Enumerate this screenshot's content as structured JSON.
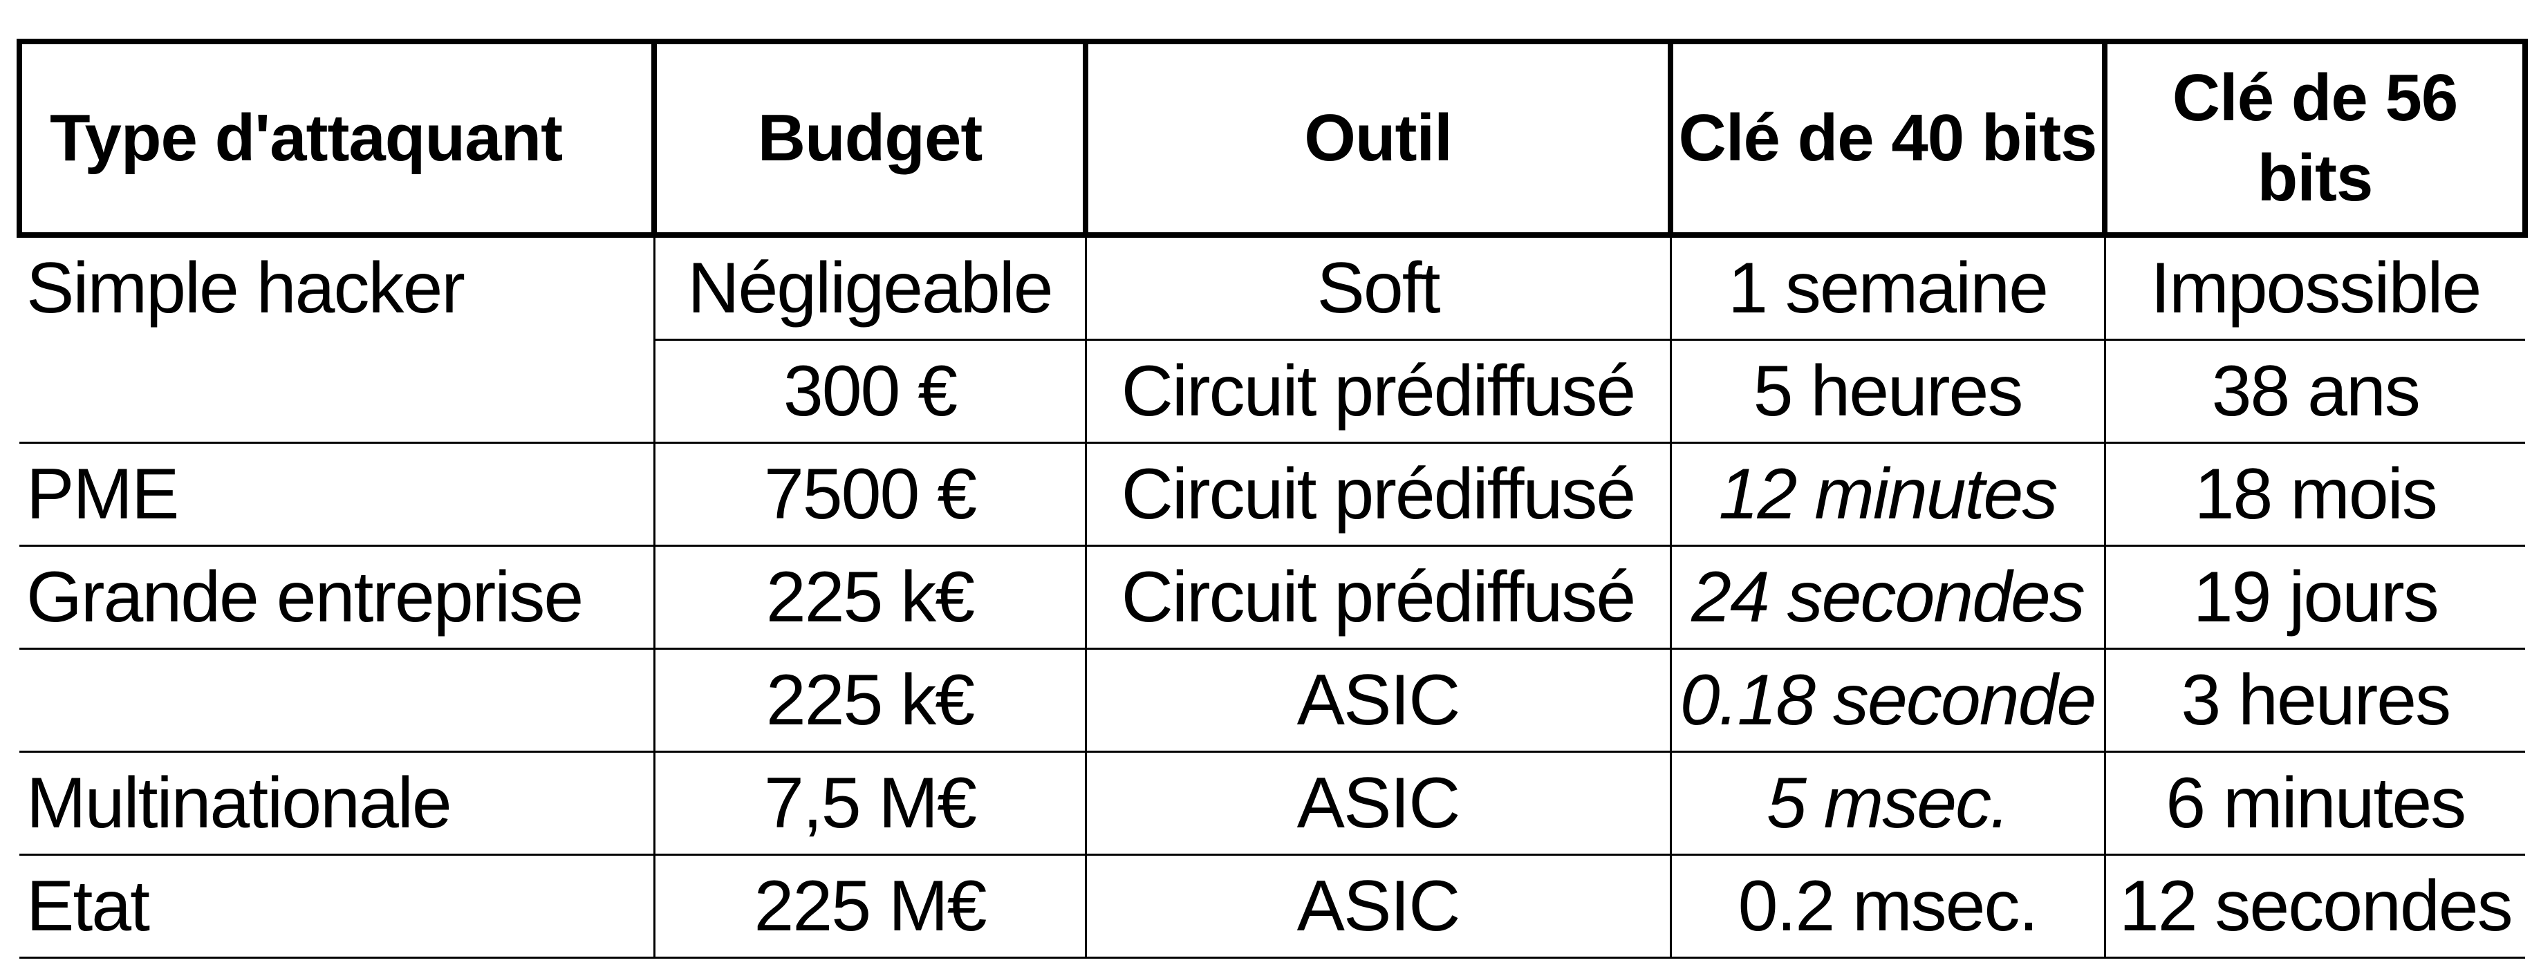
{
  "table": {
    "headers": [
      "Type d'attaquant",
      "Budget",
      "Outil",
      "Clé de 40 bits",
      "Clé de 56 bits"
    ],
    "rows": [
      [
        "Simple hacker",
        "Négligeable",
        "Soft",
        "1 semaine",
        "Impossible"
      ],
      [
        "",
        "300 €",
        "Circuit prédiffusé",
        "5 heures",
        "38 ans"
      ],
      [
        "PME",
        "7500 €",
        "Circuit prédiffusé",
        "12 minutes",
        "18 mois"
      ],
      [
        "Grande entreprise",
        "225 k€",
        "Circuit prédiffusé",
        "24 secondes",
        "19 jours"
      ],
      [
        "",
        "225 k€",
        "ASIC",
        "0.18 seconde",
        "3 heures"
      ],
      [
        "Multinationale",
        "7,5 M€",
        "ASIC",
        "5 msec.",
        "6 minutes"
      ],
      [
        "Etat",
        "225 M€",
        "ASIC",
        "0.2 msec.",
        "12 secondes"
      ]
    ]
  }
}
